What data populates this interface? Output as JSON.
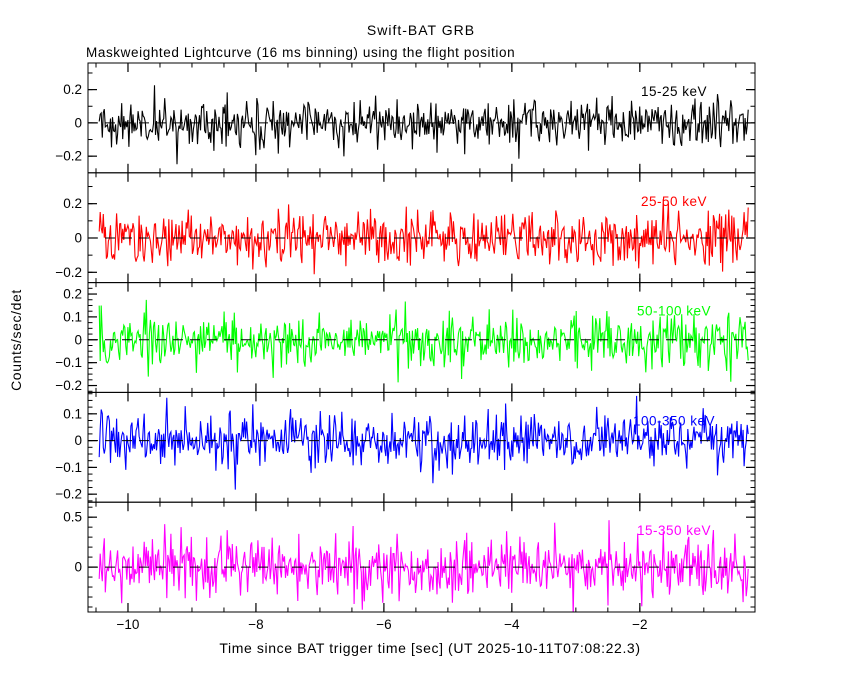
{
  "title": "Swift-BAT GRB",
  "subtitle": "Maskweighted Lightcurve (16 ms binning) using the flight position",
  "y_axis_label": "Counts/sec/det",
  "x_axis": {
    "label": "Time since BAT trigger time [sec] (UT 2025-10-11T07:08:22.3)",
    "min": -10.625,
    "max": -0.2,
    "major_ticks": [
      -10,
      -8,
      -6,
      -4,
      -2
    ],
    "minor_step": 0.5
  },
  "chart_data": {
    "type": "line",
    "description": "Five stacked noise-dominated lightcurve panels, mean 0, dashed zero line",
    "binning_sec": 0.016,
    "t_start": -10.45,
    "t_end": -0.3,
    "zero_line": {
      "style": "dashed",
      "color": "#000000"
    },
    "panels": [
      {
        "band": "15-25 keV",
        "color": "#000000",
        "ylim": [
          -0.3,
          0.36
        ],
        "labeled_ticks": [
          0.2,
          0,
          -0.2
        ],
        "minor_step": 0.1,
        "noise_sigma": 0.072,
        "seed": 1101
      },
      {
        "band": "25-50 keV",
        "color": "#ff0000",
        "ylim": [
          -0.26,
          0.38
        ],
        "labeled_ticks": [
          0.2,
          0,
          -0.2
        ],
        "minor_step": 0.1,
        "noise_sigma": 0.078,
        "seed": 2202
      },
      {
        "band": "50-100 keV",
        "color": "#00ff00",
        "ylim": [
          -0.23,
          0.25
        ],
        "labeled_ticks": [
          0.2,
          0.1,
          0,
          -0.1,
          -0.2
        ],
        "minor_step": 0.025,
        "noise_sigma": 0.058,
        "seed": 3303
      },
      {
        "band": "100-350 keV",
        "color": "#0000ff",
        "ylim": [
          -0.23,
          0.18
        ],
        "labeled_ticks": [
          0.1,
          0,
          -0.1,
          -0.2
        ],
        "minor_step": 0.025,
        "noise_sigma": 0.052,
        "seed": 4404
      },
      {
        "band": "15-350 keV",
        "color": "#ff00ff",
        "ylim": [
          -0.45,
          0.65
        ],
        "labeled_ticks": [
          0.5,
          0
        ],
        "minor_step": 0.1,
        "noise_sigma": 0.155,
        "seed": 5505
      }
    ]
  }
}
